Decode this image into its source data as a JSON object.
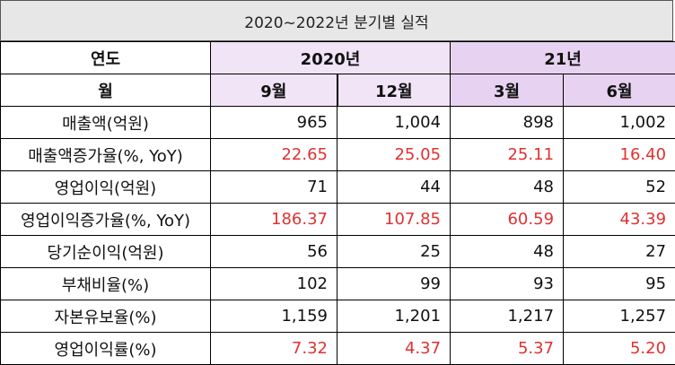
{
  "title": "2020~2022년 분기별 실적",
  "header": {
    "col_label": "연도",
    "row_label": "월",
    "years": [
      {
        "label": "2020년"
      },
      {
        "label": "21년"
      }
    ],
    "months": [
      "9월",
      "12월",
      "3월",
      "6월"
    ]
  },
  "rows": [
    {
      "label": "매출액(억원)",
      "values": [
        "965",
        "1,004",
        "898",
        "1,002"
      ],
      "red": false
    },
    {
      "label": "매출액증가율(%, YoY)",
      "values": [
        "22.65",
        "25.05",
        "25.11",
        "16.40"
      ],
      "red": true
    },
    {
      "label": "영업이익(억원)",
      "values": [
        "71",
        "44",
        "48",
        "52"
      ],
      "red": false
    },
    {
      "label": "영업이익증가율(%, YoY)",
      "values": [
        "186.37",
        "107.85",
        "60.59",
        "43.39"
      ],
      "red": true
    },
    {
      "label": "당기순이익(억원)",
      "values": [
        "56",
        "25",
        "48",
        "27"
      ],
      "red": false
    },
    {
      "label": "부채비율(%)",
      "values": [
        "102",
        "99",
        "93",
        "95"
      ],
      "red": false
    },
    {
      "label": "자본유보율(%)",
      "values": [
        "1,159",
        "1,201",
        "1,217",
        "1,257"
      ],
      "red": false
    },
    {
      "label": "영업이익률(%)",
      "values": [
        "7.32",
        "4.37",
        "5.37",
        "5.20"
      ],
      "red": true
    }
  ],
  "colors": {
    "negative_highlight": "#e03131",
    "year_2020_bg": "#f0e4f6",
    "year_21_bg": "#e7d3f1",
    "title_bg": "#e7e7e7"
  }
}
